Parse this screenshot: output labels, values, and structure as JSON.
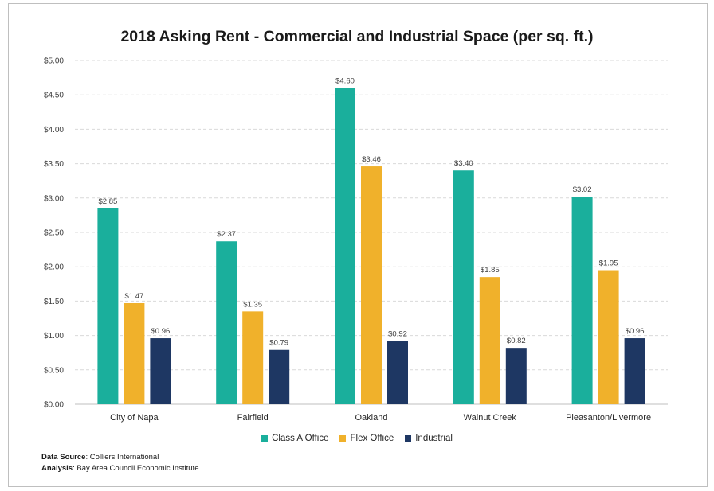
{
  "chart_data": {
    "type": "bar",
    "title": "2018 Asking Rent - Commercial and Industrial Space (per sq. ft.)",
    "categories": [
      "City of Napa",
      "Fairfield",
      "Oakland",
      "Walnut Creek",
      "Pleasanton/Livermore"
    ],
    "series": [
      {
        "name": "Class A Office",
        "color": "#1aaf9c",
        "values": [
          2.85,
          2.37,
          4.6,
          3.4,
          3.02
        ],
        "labels": [
          "$2.85",
          "$2.37",
          "$4.60",
          "$3.40",
          "$3.02"
        ]
      },
      {
        "name": "Flex Office",
        "color": "#f0b12b",
        "values": [
          1.47,
          1.35,
          3.46,
          1.85,
          1.95
        ],
        "labels": [
          "$1.47",
          "$1.35",
          "$3.46",
          "$1.85",
          "$1.95"
        ]
      },
      {
        "name": "Industrial",
        "color": "#1e3763",
        "values": [
          0.96,
          0.79,
          0.92,
          0.82,
          0.96
        ],
        "labels": [
          "$0.96",
          "$0.79",
          "$0.92",
          "$0.82",
          "$0.96"
        ]
      }
    ],
    "ylim": [
      0,
      5
    ],
    "yticks": [
      0,
      0.5,
      1,
      1.5,
      2,
      2.5,
      3,
      3.5,
      4,
      4.5,
      5
    ],
    "ytick_labels": [
      "$0.00",
      "$0.50",
      "$1.00",
      "$1.50",
      "$2.00",
      "$2.50",
      "$3.00",
      "$3.50",
      "$4.00",
      "$4.50",
      "$5.00"
    ],
    "grid": true,
    "legend": "bottom"
  },
  "notes": {
    "source_label": "Data Source",
    "source_value": ": Colliers International",
    "analysis_label": "Analysis",
    "analysis_value": ": Bay Area Council Economic Institute"
  }
}
